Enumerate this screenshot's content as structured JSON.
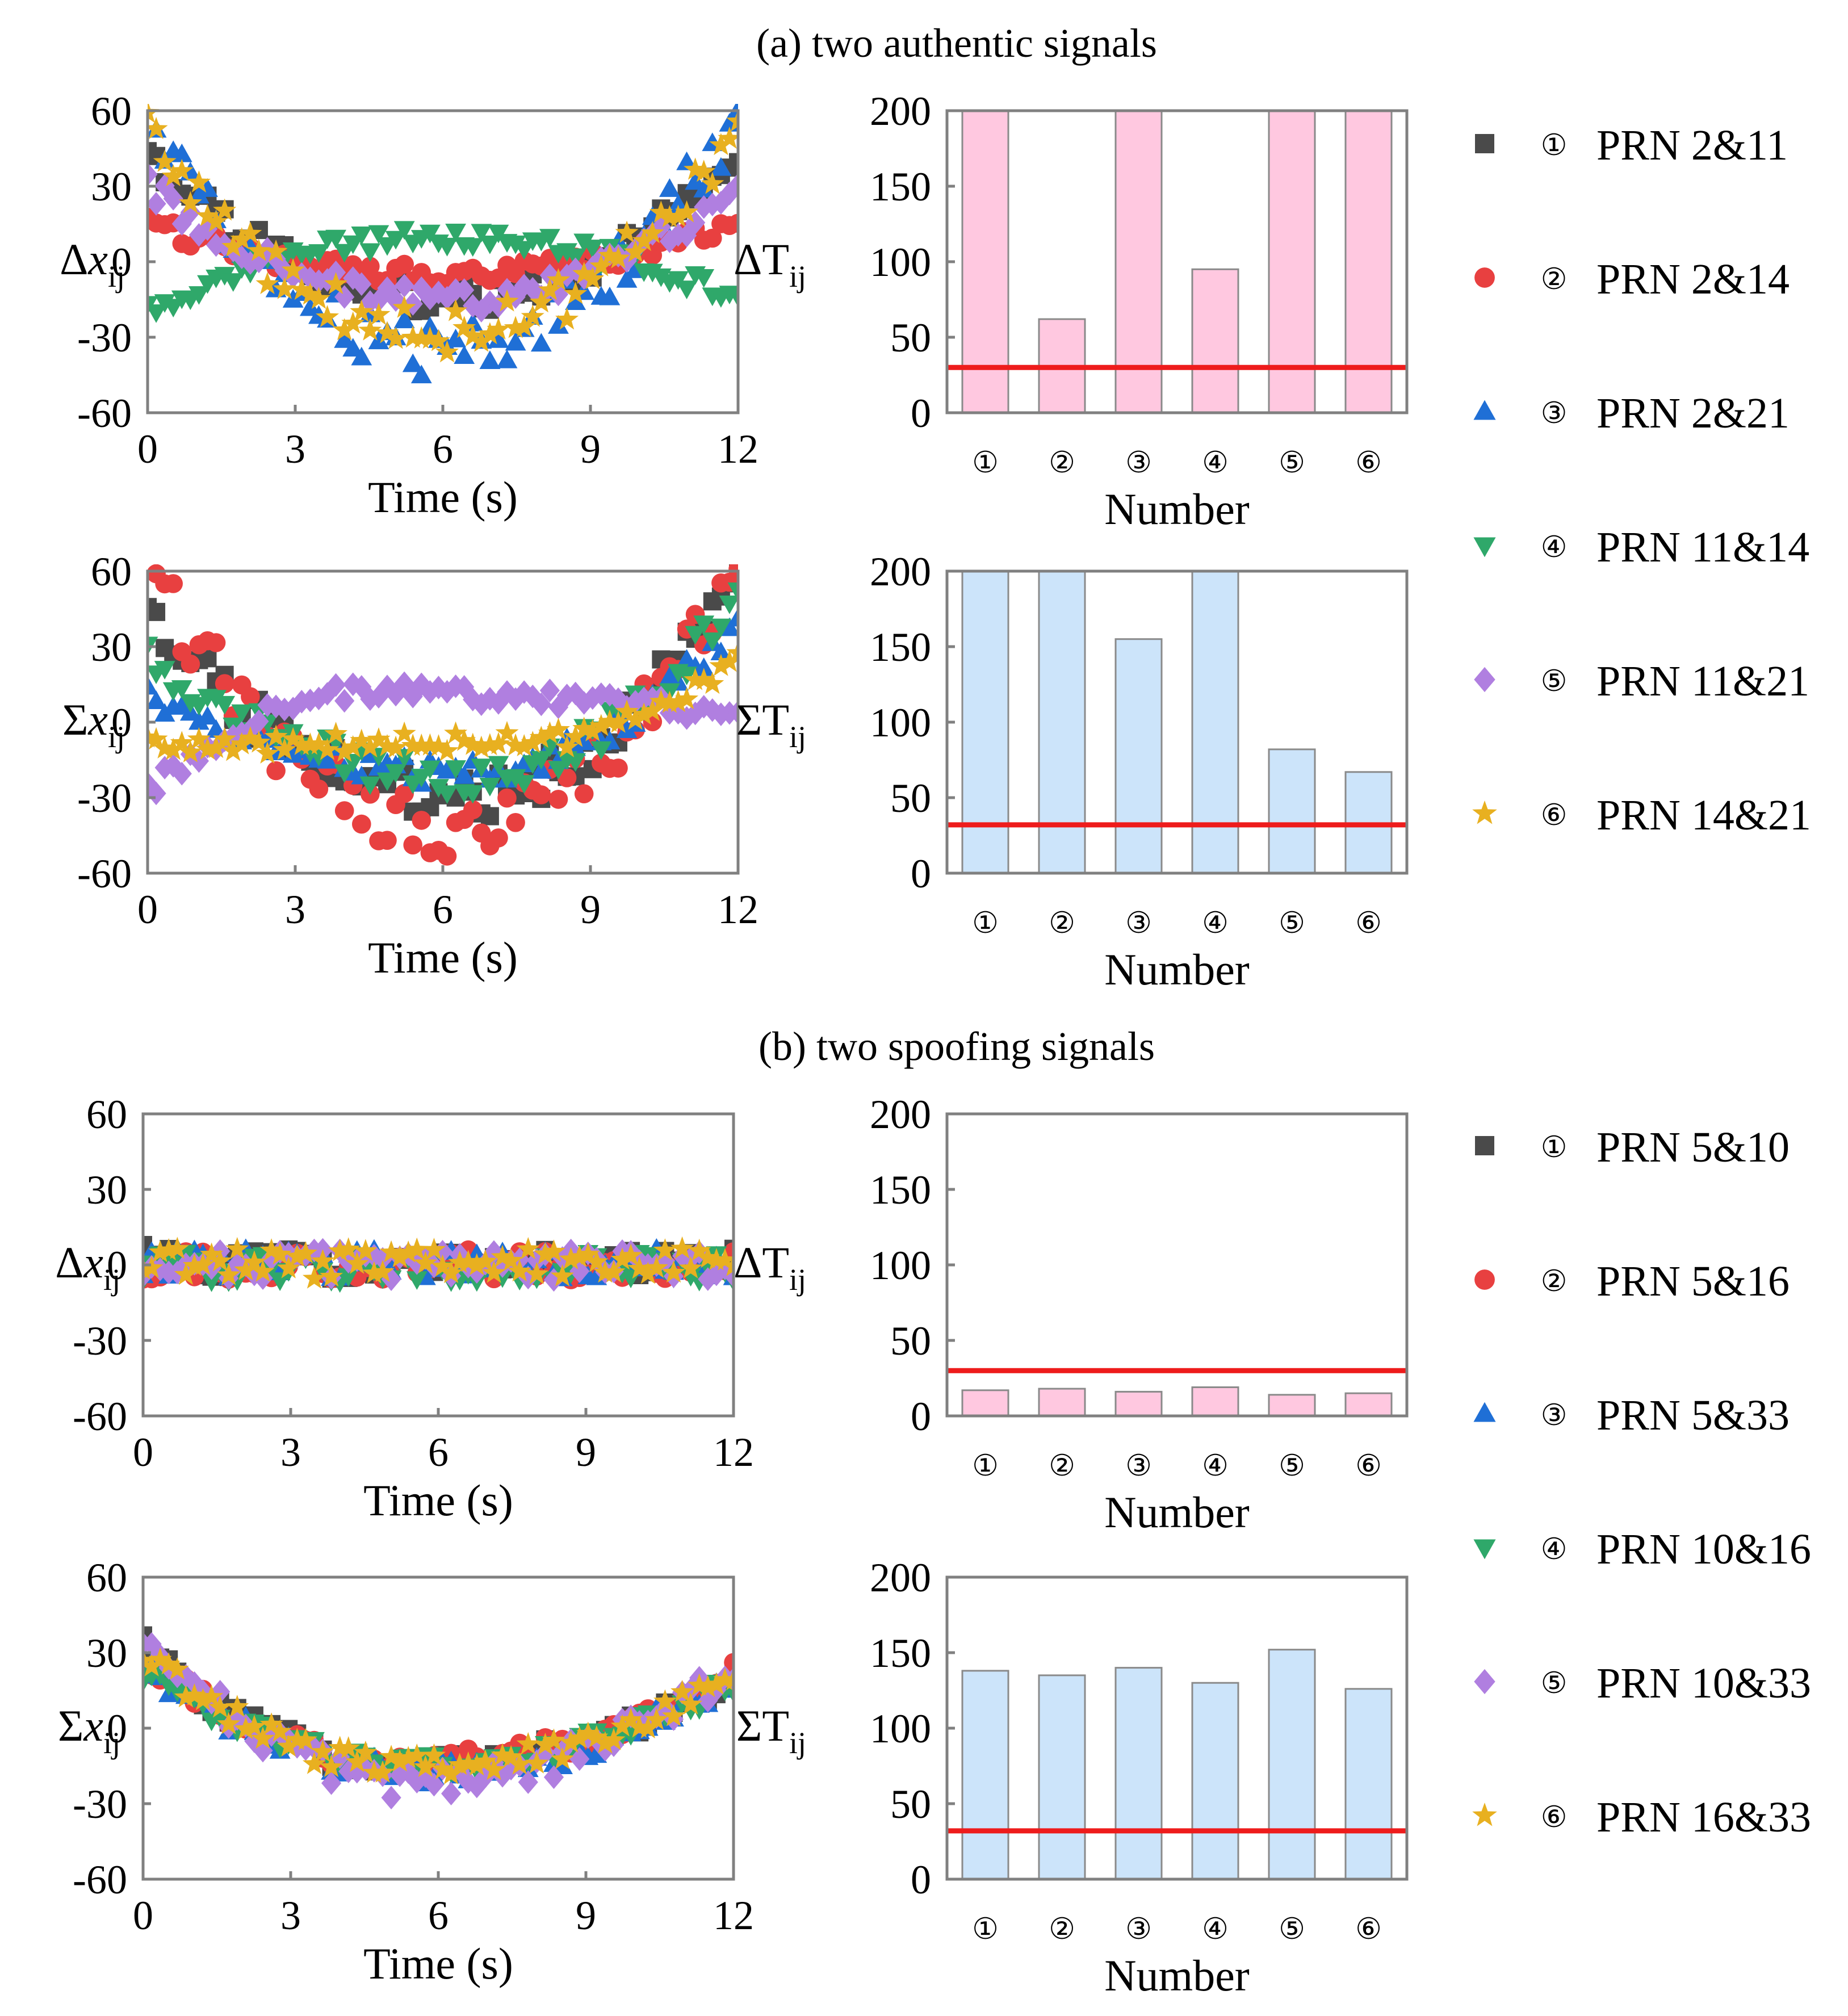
{
  "sections": [
    {
      "title": "(a) two authentic signals",
      "legend": [
        {
          "num": "①",
          "label": "PRN 2&11"
        },
        {
          "num": "②",
          "label": "PRN 2&14"
        },
        {
          "num": "③",
          "label": "PRN 2&21"
        },
        {
          "num": "④",
          "label": "PRN 11&14"
        },
        {
          "num": "⑤",
          "label": "PRN 11&21"
        },
        {
          "num": "⑥",
          "label": "PRN 14&21"
        }
      ]
    },
    {
      "title": "(b) two spoofing signals",
      "legend": [
        {
          "num": "①",
          "label": "PRN 5&10"
        },
        {
          "num": "②",
          "label": "PRN 5&16"
        },
        {
          "num": "③",
          "label": "PRN 5&33"
        },
        {
          "num": "④",
          "label": "PRN 10&16"
        },
        {
          "num": "⑤",
          "label": "PRN 10&33"
        },
        {
          "num": "⑥",
          "label": "PRN 16&33"
        }
      ]
    }
  ],
  "colors": {
    "series": [
      "#4a4a4a",
      "#e84040",
      "#1f6fd6",
      "#2fa86a",
      "#b07fe0",
      "#e8b020"
    ],
    "markers": [
      "square",
      "circle",
      "triangle-up",
      "triangle-down",
      "diamond",
      "star"
    ],
    "bar_pink": "#ffc8e0",
    "bar_blue": "#cce4fa",
    "threshold": "#ee1c1c",
    "axis": "#808080"
  },
  "chart_data": [
    {
      "type": "scatter",
      "id": "a-delta",
      "section": 0,
      "xlabel": "Time (s)",
      "ylabel": "Δx",
      "ylabel_sub": "ij",
      "xlim": [
        0,
        12
      ],
      "ylim": [
        -60,
        60
      ],
      "xticks": [
        "0",
        "3",
        "6",
        "9",
        "12"
      ],
      "yticks": [
        "60",
        "30",
        "0",
        "-30",
        "-60"
      ],
      "series_model": [
        {
          "name": "PRN 2&11",
          "start": 40,
          "min": -15,
          "end": 40,
          "tmin": 6
        },
        {
          "name": "PRN 2&14",
          "start": 15,
          "min": -5,
          "end": 15,
          "tmin": 6
        },
        {
          "name": "PRN 2&21",
          "start": 58,
          "min": -35,
          "end": 58,
          "tmin": 6
        },
        {
          "name": "PRN 11&14",
          "start": -20,
          "min": 10,
          "end": -15,
          "tmin": 6,
          "inverted": true
        },
        {
          "name": "PRN 11&21",
          "start": 30,
          "min": -15,
          "end": 28,
          "tmin": 6
        },
        {
          "name": "PRN 14&21",
          "start": 50,
          "min": -28,
          "end": 50,
          "tmin": 6
        }
      ]
    },
    {
      "type": "bar",
      "id": "a-delta-T",
      "section": 0,
      "xlabel": "Number",
      "ylabel": "ΔT",
      "ylabel_sub": "ij",
      "categories": [
        "①",
        "②",
        "③",
        "④",
        "⑤",
        "⑥"
      ],
      "values": [
        200,
        62,
        200,
        95,
        200,
        200
      ],
      "threshold": 30,
      "ylim": [
        0,
        200
      ],
      "yticks": [
        "200",
        "150",
        "100",
        "50",
        "0"
      ],
      "bar_color": "pink"
    },
    {
      "type": "scatter",
      "id": "a-sigma",
      "section": 0,
      "xlabel": "Time (s)",
      "ylabel": "Σx",
      "ylabel_sub": "ij",
      "xlim": [
        0,
        12
      ],
      "ylim": [
        -60,
        60
      ],
      "xticks": [
        "0",
        "3",
        "6",
        "9",
        "12"
      ],
      "yticks": [
        "60",
        "30",
        "0",
        "-30",
        "-60"
      ],
      "series_model": [
        {
          "name": "PRN 2&11",
          "start": 40,
          "min": -30,
          "end": 60,
          "tmin": 6.5
        },
        {
          "name": "PRN 2&14",
          "start": 60,
          "min": -42,
          "end": 60,
          "tmin": 6.2
        },
        {
          "name": "PRN 2&21",
          "start": 10,
          "min": -20,
          "end": 40,
          "tmin": 6.5
        },
        {
          "name": "PRN 11&14",
          "start": 25,
          "min": -22,
          "end": 50,
          "tmin": 6.5
        },
        {
          "name": "PRN 11&21",
          "start": -28,
          "min": 12,
          "end": 2,
          "tmin": 4.5,
          "inverted": true
        },
        {
          "name": "PRN 14&21",
          "start": -10,
          "min": -8,
          "end": 25,
          "tmin": 7.5
        }
      ]
    },
    {
      "type": "bar",
      "id": "a-sigma-T",
      "section": 0,
      "xlabel": "Number",
      "ylabel": "ΣT",
      "ylabel_sub": "ij",
      "categories": [
        "①",
        "②",
        "③",
        "④",
        "⑤",
        "⑥"
      ],
      "values": [
        200,
        200,
        155,
        200,
        82,
        67
      ],
      "threshold": 32,
      "ylim": [
        0,
        200
      ],
      "yticks": [
        "200",
        "150",
        "100",
        "50",
        "0"
      ],
      "bar_color": "blue"
    },
    {
      "type": "scatter",
      "id": "b-delta",
      "section": 1,
      "xlabel": "Time (s)",
      "ylabel": "Δx",
      "ylabel_sub": "ij",
      "xlim": [
        0,
        12
      ],
      "ylim": [
        -60,
        60
      ],
      "xticks": [
        "0",
        "3",
        "6",
        "9",
        "12"
      ],
      "yticks": [
        "60",
        "30",
        "0",
        "-30",
        "-60"
      ],
      "series_model": [
        {
          "name": "PRN 5&10",
          "start": 2,
          "min": 0,
          "end": 2,
          "tmin": 6
        },
        {
          "name": "PRN 5&16",
          "start": 0,
          "min": 0,
          "end": 0,
          "tmin": 6
        },
        {
          "name": "PRN 5&33",
          "start": 1,
          "min": 0,
          "end": 1,
          "tmin": 6
        },
        {
          "name": "PRN 10&16",
          "start": -1,
          "min": -1,
          "end": -1,
          "tmin": 6
        },
        {
          "name": "PRN 10&33",
          "start": 0,
          "min": 0,
          "end": 0,
          "tmin": 6
        },
        {
          "name": "PRN 16&33",
          "start": 2,
          "min": 0,
          "end": 3,
          "tmin": 6
        }
      ]
    },
    {
      "type": "bar",
      "id": "b-delta-T",
      "section": 1,
      "xlabel": "Number",
      "ylabel": "ΔT",
      "ylabel_sub": "ij",
      "categories": [
        "①",
        "②",
        "③",
        "④",
        "⑤",
        "⑥"
      ],
      "values": [
        17,
        18,
        16,
        19,
        14,
        15
      ],
      "threshold": 30,
      "ylim": [
        0,
        200
      ],
      "yticks": [
        "200",
        "150",
        "100",
        "50",
        "0"
      ],
      "bar_color": "pink"
    },
    {
      "type": "scatter",
      "id": "b-sigma",
      "section": 1,
      "xlabel": "Time (s)",
      "ylabel": "Σx",
      "ylabel_sub": "ij",
      "xlim": [
        0,
        12
      ],
      "ylim": [
        -60,
        60
      ],
      "xticks": [
        "0",
        "3",
        "6",
        "9",
        "12"
      ],
      "yticks": [
        "60",
        "30",
        "0",
        "-30",
        "-60"
      ],
      "series_model": [
        {
          "name": "PRN 5&10",
          "start": 32,
          "min": -15,
          "end": 20,
          "tmin": 5.5
        },
        {
          "name": "PRN 5&16",
          "start": 28,
          "min": -14,
          "end": 22,
          "tmin": 5.5
        },
        {
          "name": "PRN 5&33",
          "start": 25,
          "min": -18,
          "end": 20,
          "tmin": 5.8
        },
        {
          "name": "PRN 10&16",
          "start": 22,
          "min": -14,
          "end": 18,
          "tmin": 5.8
        },
        {
          "name": "PRN 10&33",
          "start": 38,
          "min": -22,
          "end": 24,
          "tmin": 5.5
        },
        {
          "name": "PRN 16&33",
          "start": 30,
          "min": -16,
          "end": 22,
          "tmin": 5.6
        }
      ]
    },
    {
      "type": "bar",
      "id": "b-sigma-T",
      "section": 1,
      "xlabel": "Number",
      "ylabel": "ΣT",
      "ylabel_sub": "ij",
      "categories": [
        "①",
        "②",
        "③",
        "④",
        "⑤",
        "⑥"
      ],
      "values": [
        138,
        135,
        140,
        130,
        152,
        126
      ],
      "threshold": 32,
      "ylim": [
        0,
        200
      ],
      "yticks": [
        "200",
        "150",
        "100",
        "50",
        "0"
      ],
      "bar_color": "blue"
    }
  ]
}
